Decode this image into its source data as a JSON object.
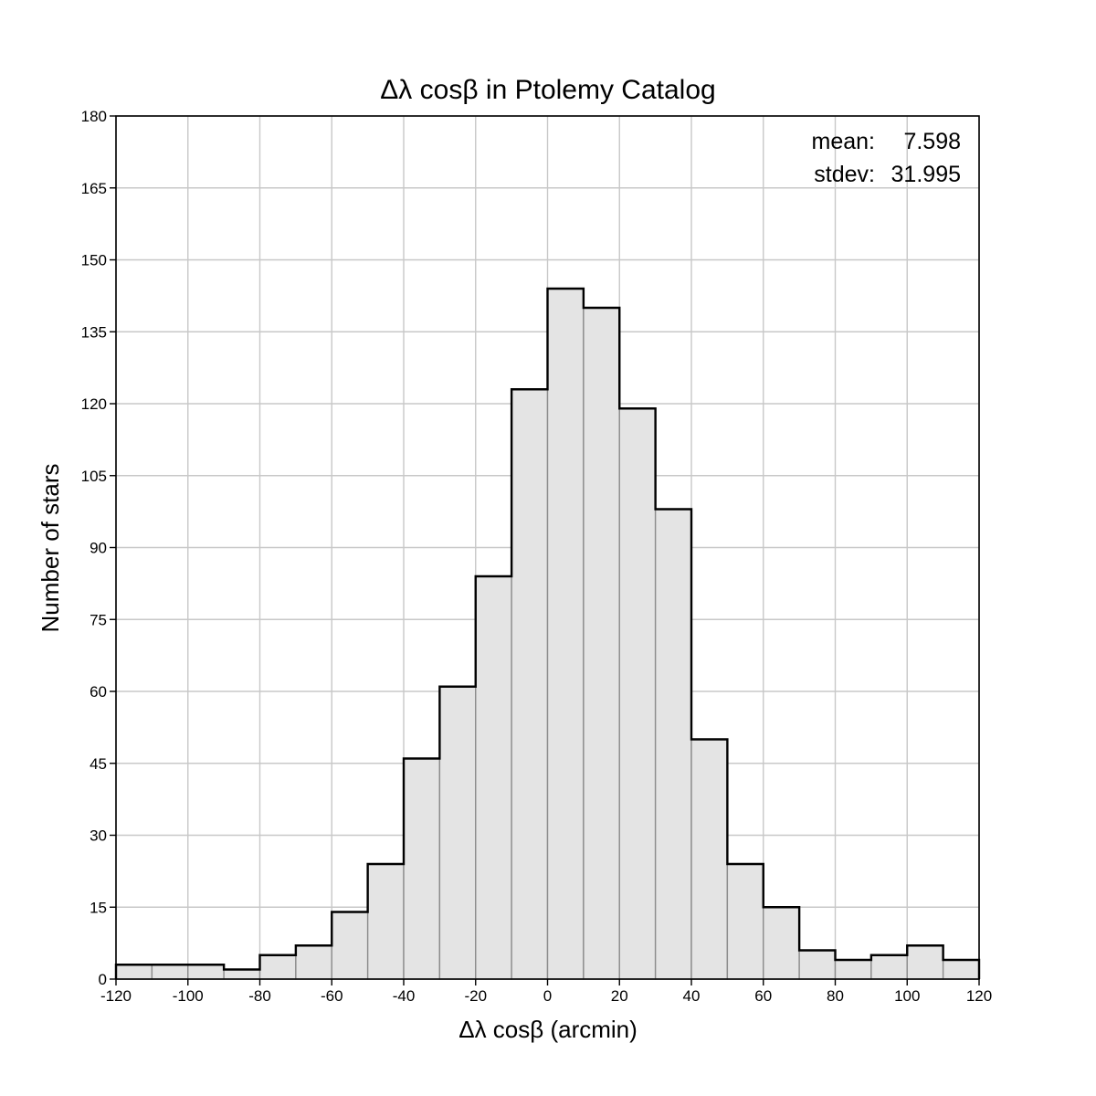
{
  "chart_data": {
    "type": "bar",
    "title": "Δλ cosβ in Ptolemy Catalog",
    "xlabel": "Δλ cosβ (arcmin)",
    "ylabel": "Number of stars",
    "xlim": [
      -120,
      120
    ],
    "ylim": [
      0,
      180
    ],
    "bin_width": 10,
    "bin_edges": [
      -120,
      -110,
      -100,
      -90,
      -80,
      -70,
      -60,
      -50,
      -40,
      -30,
      -20,
      -10,
      0,
      10,
      20,
      30,
      40,
      50,
      60,
      70,
      80,
      90,
      100,
      110,
      120
    ],
    "values": [
      3,
      3,
      3,
      2,
      5,
      7,
      14,
      24,
      46,
      61,
      84,
      123,
      144,
      140,
      119,
      98,
      50,
      24,
      15,
      6,
      4,
      5,
      7,
      4
    ],
    "x_ticks": [
      -120,
      -100,
      -80,
      -60,
      -40,
      -20,
      0,
      20,
      40,
      60,
      80,
      100,
      120
    ],
    "x_tick_labels": [
      "-120",
      "-100",
      "-80",
      "-60",
      "-40",
      "-20",
      "0",
      "20",
      "40",
      "60",
      "80",
      "100",
      "120"
    ],
    "y_ticks": [
      0,
      15,
      30,
      45,
      60,
      75,
      90,
      105,
      120,
      135,
      150,
      165,
      180
    ],
    "y_tick_labels": [
      "0",
      "15",
      "30",
      "45",
      "60",
      "75",
      "90",
      "105",
      "120",
      "135",
      "150",
      "165",
      "180"
    ],
    "grid": true,
    "colors": {
      "bar_fill": "#e4e4e4",
      "bar_edge": "#8c8c8c",
      "outline": "#000000",
      "grid": "#c8c8c8"
    },
    "annotations": {
      "mean_label": "mean:",
      "mean_value": "7.598",
      "stdev_label": "stdev:",
      "stdev_value": "31.995",
      "placement": "top-right"
    }
  }
}
